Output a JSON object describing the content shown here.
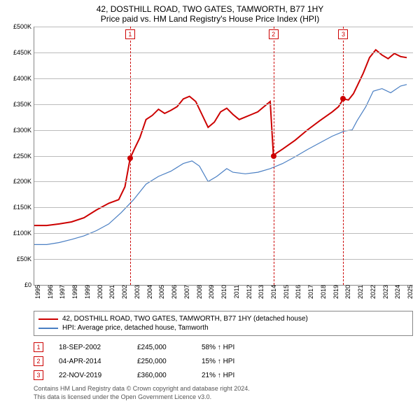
{
  "title_line1": "42, DOSTHILL ROAD, TWO GATES, TAMWORTH, B77 1HY",
  "title_line2": "Price paid vs. HM Land Registry's House Price Index (HPI)",
  "chart": {
    "type": "line",
    "background_color": "#ffffff",
    "grid_color": "#bbbbbb",
    "axis_color": "#888888",
    "x_years": [
      1995,
      1996,
      1997,
      1998,
      1999,
      2000,
      2001,
      2002,
      2003,
      2004,
      2005,
      2006,
      2007,
      2008,
      2009,
      2010,
      2011,
      2012,
      2013,
      2014,
      2015,
      2016,
      2017,
      2018,
      2019,
      2020,
      2021,
      2022,
      2023,
      2024,
      2025
    ],
    "xlim": [
      1995,
      2025.5
    ],
    "ylim": [
      0,
      500000
    ],
    "ytick_step": 50000,
    "ytick_labels": [
      "£0",
      "£50K",
      "£100K",
      "£150K",
      "£200K",
      "£250K",
      "£300K",
      "£350K",
      "£400K",
      "£450K",
      "£500K"
    ],
    "series": [
      {
        "name": "property",
        "color": "#cc0000",
        "width": 2,
        "label": "42, DOSTHILL ROAD, TWO GATES, TAMWORTH, B77 1HY (detached house)",
        "points": [
          [
            1995.0,
            115000
          ],
          [
            1996.0,
            115000
          ],
          [
            1997.0,
            118000
          ],
          [
            1998.0,
            122000
          ],
          [
            1999.0,
            130000
          ],
          [
            2000.0,
            145000
          ],
          [
            2001.0,
            158000
          ],
          [
            2001.8,
            165000
          ],
          [
            2002.3,
            190000
          ],
          [
            2002.72,
            245000
          ],
          [
            2003.0,
            260000
          ],
          [
            2003.5,
            285000
          ],
          [
            2004.0,
            320000
          ],
          [
            2004.5,
            328000
          ],
          [
            2005.0,
            340000
          ],
          [
            2005.5,
            332000
          ],
          [
            2006.0,
            338000
          ],
          [
            2006.5,
            345000
          ],
          [
            2007.0,
            360000
          ],
          [
            2007.5,
            365000
          ],
          [
            2008.0,
            355000
          ],
          [
            2008.5,
            330000
          ],
          [
            2009.0,
            305000
          ],
          [
            2009.5,
            315000
          ],
          [
            2010.0,
            335000
          ],
          [
            2010.5,
            342000
          ],
          [
            2011.0,
            330000
          ],
          [
            2011.5,
            320000
          ],
          [
            2012.0,
            325000
          ],
          [
            2012.5,
            330000
          ],
          [
            2013.0,
            335000
          ],
          [
            2013.5,
            345000
          ],
          [
            2014.0,
            355000
          ],
          [
            2014.26,
            250000
          ],
          [
            2014.5,
            255000
          ],
          [
            2015.0,
            263000
          ],
          [
            2016.0,
            280000
          ],
          [
            2017.0,
            300000
          ],
          [
            2018.0,
            318000
          ],
          [
            2019.0,
            335000
          ],
          [
            2019.5,
            345000
          ],
          [
            2019.89,
            360000
          ],
          [
            2020.3,
            358000
          ],
          [
            2020.7,
            370000
          ],
          [
            2021.0,
            385000
          ],
          [
            2021.5,
            410000
          ],
          [
            2022.0,
            440000
          ],
          [
            2022.5,
            455000
          ],
          [
            2023.0,
            445000
          ],
          [
            2023.5,
            438000
          ],
          [
            2024.0,
            448000
          ],
          [
            2024.5,
            442000
          ],
          [
            2025.0,
            440000
          ]
        ]
      },
      {
        "name": "hpi",
        "color": "#4a7fc3",
        "width": 1.2,
        "label": "HPI: Average price, detached house, Tamworth",
        "points": [
          [
            1995.0,
            78000
          ],
          [
            1996.0,
            78000
          ],
          [
            1997.0,
            82000
          ],
          [
            1998.0,
            88000
          ],
          [
            1999.0,
            95000
          ],
          [
            2000.0,
            105000
          ],
          [
            2001.0,
            118000
          ],
          [
            2002.0,
            140000
          ],
          [
            2003.0,
            165000
          ],
          [
            2004.0,
            195000
          ],
          [
            2005.0,
            210000
          ],
          [
            2006.0,
            220000
          ],
          [
            2007.0,
            235000
          ],
          [
            2007.7,
            240000
          ],
          [
            2008.3,
            230000
          ],
          [
            2009.0,
            200000
          ],
          [
            2009.7,
            210000
          ],
          [
            2010.5,
            225000
          ],
          [
            2011.0,
            218000
          ],
          [
            2012.0,
            215000
          ],
          [
            2013.0,
            218000
          ],
          [
            2014.0,
            225000
          ],
          [
            2015.0,
            235000
          ],
          [
            2016.0,
            248000
          ],
          [
            2017.0,
            262000
          ],
          [
            2018.0,
            275000
          ],
          [
            2019.0,
            288000
          ],
          [
            2020.0,
            298000
          ],
          [
            2020.6,
            300000
          ],
          [
            2021.0,
            318000
          ],
          [
            2021.7,
            345000
          ],
          [
            2022.3,
            375000
          ],
          [
            2023.0,
            380000
          ],
          [
            2023.7,
            372000
          ],
          [
            2024.5,
            385000
          ],
          [
            2025.0,
            388000
          ]
        ]
      }
    ],
    "sale_markers": [
      {
        "badge": "1",
        "year": 2002.72,
        "price": 245000
      },
      {
        "badge": "2",
        "year": 2014.26,
        "price": 250000
      },
      {
        "badge": "3",
        "year": 2019.89,
        "price": 360000
      }
    ]
  },
  "legend": {
    "items": [
      {
        "color": "#cc0000",
        "text": "42, DOSTHILL ROAD, TWO GATES, TAMWORTH, B77 1HY (detached house)"
      },
      {
        "color": "#4a7fc3",
        "text": "HPI: Average price, detached house, Tamworth"
      }
    ]
  },
  "sales": [
    {
      "badge": "1",
      "date": "18-SEP-2002",
      "price": "£245,000",
      "pct": "58% ↑ HPI"
    },
    {
      "badge": "2",
      "date": "04-APR-2014",
      "price": "£250,000",
      "pct": "15% ↑ HPI"
    },
    {
      "badge": "3",
      "date": "22-NOV-2019",
      "price": "£360,000",
      "pct": "21% ↑ HPI"
    }
  ],
  "footnote_line1": "Contains HM Land Registry data © Crown copyright and database right 2024.",
  "footnote_line2": "This data is licensed under the Open Government Licence v3.0."
}
